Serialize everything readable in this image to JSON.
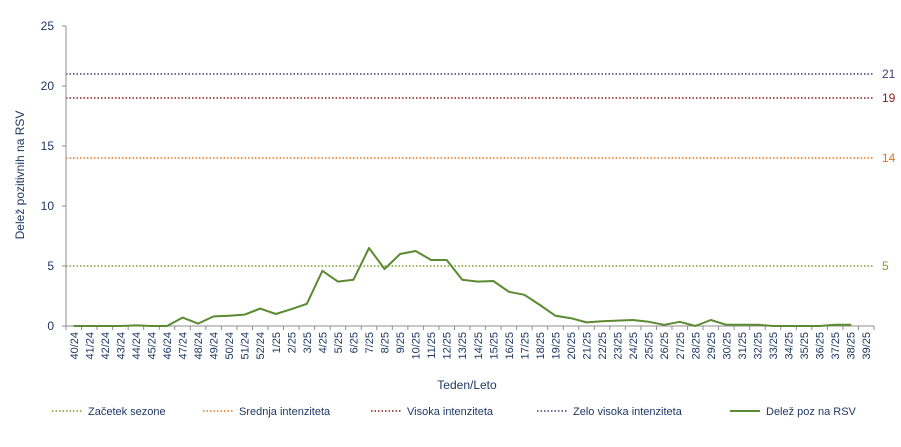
{
  "chart_data": {
    "type": "line",
    "xlabel": "Teden/Leto",
    "ylabel": "Delež pozitivnih na RSV",
    "ylim": [
      0,
      25
    ],
    "yticks": [
      0,
      5,
      10,
      15,
      20,
      25
    ],
    "categories": [
      "40/24",
      "41/24",
      "42/24",
      "43/24",
      "44/24",
      "45/24",
      "46/24",
      "47/24",
      "48/24",
      "49/24",
      "50/24",
      "51/24",
      "52/24",
      "1/25",
      "2/25",
      "3/25",
      "4/25",
      "5/25",
      "6/25",
      "7/25",
      "8/25",
      "9/25",
      "10/25",
      "11/25",
      "12/25",
      "13/25",
      "14/25",
      "15/25",
      "16/25",
      "17/25",
      "18/25",
      "19/25",
      "20/25",
      "21/25",
      "22/25",
      "23/25",
      "24/25",
      "25/25",
      "26/25",
      "27/25",
      "28/25",
      "29/25",
      "30/25",
      "31/25",
      "32/25",
      "33/25",
      "34/25",
      "35/25",
      "36/25",
      "37/25",
      "38/25",
      "39/25"
    ],
    "series": [
      {
        "name": "Delež poz na RSV",
        "color": "#5b8a32",
        "values": [
          0,
          0,
          0,
          0,
          0.05,
          0,
          0,
          0.7,
          0.2,
          0.8,
          0.85,
          0.95,
          1.45,
          1.0,
          1.4,
          1.85,
          4.6,
          3.7,
          3.85,
          6.5,
          4.75,
          6.0,
          6.25,
          5.5,
          5.5,
          3.85,
          3.7,
          3.75,
          2.85,
          2.6,
          1.75,
          0.85,
          0.65,
          0.3,
          0.4,
          0.45,
          0.5,
          0.35,
          0.1,
          0.35,
          0,
          0.5,
          0.1,
          0.1,
          0.1,
          0,
          0,
          0,
          0,
          0.1,
          0.1,
          null
        ]
      }
    ],
    "thresholds": [
      {
        "name": "Začetek sezone",
        "value": 5,
        "label": "5",
        "color": "#76a02f"
      },
      {
        "name": "Srednja intenziteta",
        "value": 14,
        "label": "14",
        "color": "#e8731c"
      },
      {
        "name": "Visoka intenziteta",
        "value": 19,
        "label": "19",
        "color": "#8b1a1a"
      },
      {
        "name": "Zelo visoka intenziteta",
        "value": 21,
        "label": "21",
        "color": "#403975"
      }
    ],
    "grid": false,
    "legend_position": "bottom"
  }
}
